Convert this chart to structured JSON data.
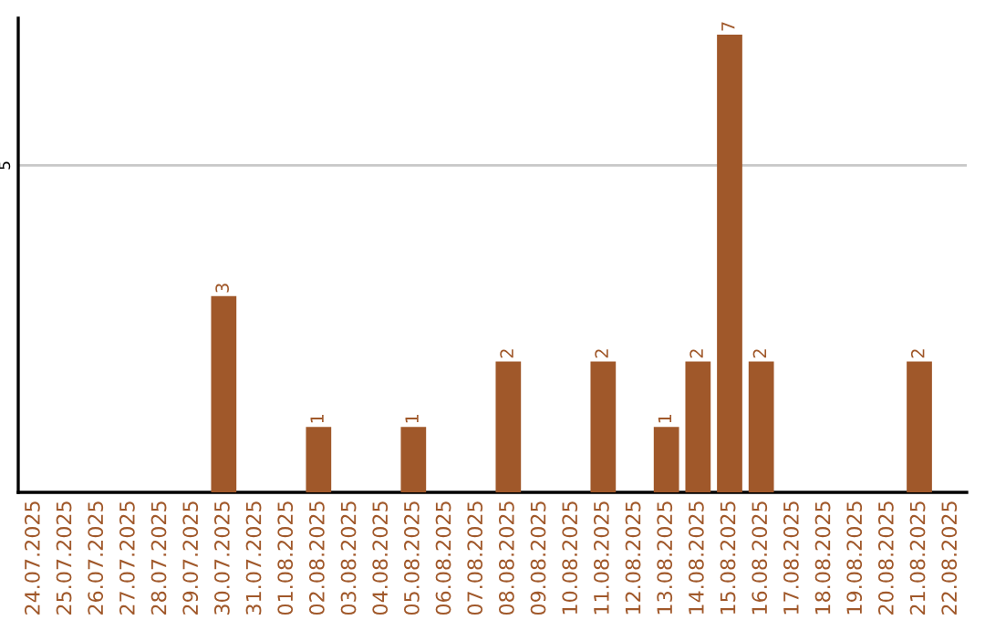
{
  "chart_data": {
    "type": "bar",
    "categories": [
      "24.07.2025",
      "25.07.2025",
      "26.07.2025",
      "27.07.2025",
      "28.07.2025",
      "29.07.2025",
      "30.07.2025",
      "31.07.2025",
      "01.08.2025",
      "02.08.2025",
      "03.08.2025",
      "04.08.2025",
      "05.08.2025",
      "06.08.2025",
      "07.08.2025",
      "08.08.2025",
      "09.08.2025",
      "10.08.2025",
      "11.08.2025",
      "12.08.2025",
      "13.08.2025",
      "14.08.2025",
      "15.08.2025",
      "16.08.2025",
      "17.08.2025",
      "18.08.2025",
      "19.08.2025",
      "20.08.2025",
      "21.08.2025",
      "22.08.2025"
    ],
    "values": [
      0,
      0,
      0,
      0,
      0,
      0,
      3,
      0,
      0,
      1,
      0,
      0,
      1,
      0,
      0,
      2,
      0,
      0,
      2,
      0,
      1,
      2,
      7,
      2,
      0,
      0,
      0,
      0,
      2,
      0
    ],
    "value_labels": [
      null,
      null,
      null,
      null,
      null,
      null,
      "3",
      null,
      null,
      "1",
      null,
      null,
      "1",
      null,
      null,
      "2",
      null,
      null,
      "2",
      null,
      "1",
      "2",
      "7",
      "2",
      null,
      null,
      null,
      null,
      "2",
      null
    ],
    "color": "#a0582a",
    "ylim": [
      0,
      7.25
    ],
    "yticks": [
      5
    ],
    "grid": "y"
  }
}
